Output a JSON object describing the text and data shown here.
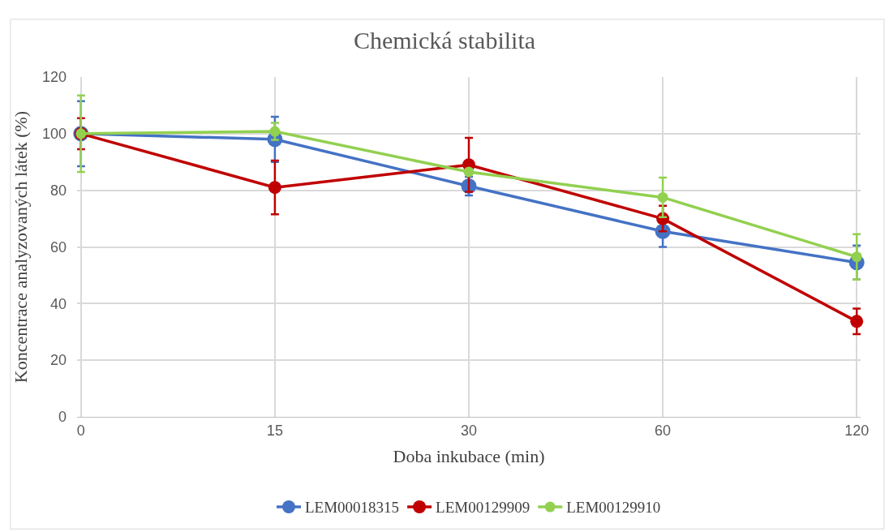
{
  "chart_data": {
    "type": "line",
    "title": "Chemická stabilita",
    "xlabel": "Doba inkubace (min)",
    "ylabel": "Koncentrace analyzovaných látek (%)",
    "categories": [
      "0",
      "15",
      "30",
      "60",
      "120"
    ],
    "series": [
      {
        "name": "LEM00018315",
        "color": "#4472c4",
        "values": [
          100,
          98,
          81.5,
          65.5,
          54.5
        ],
        "errors": [
          11.5,
          8,
          3.3,
          5.5,
          6
        ]
      },
      {
        "name": "LEM00129909",
        "color": "#c00000",
        "values": [
          100,
          81,
          89,
          70,
          33.7
        ],
        "errors": [
          5.5,
          9.5,
          9.5,
          4.5,
          4.5
        ]
      },
      {
        "name": "LEM00129910",
        "color": "#92d050",
        "values": [
          100,
          100.8,
          86.5,
          77.5,
          56.5
        ],
        "errors": [
          13.5,
          3,
          null,
          7,
          8
        ]
      }
    ],
    "ylim": [
      0,
      120
    ],
    "yticks": [
      0,
      20,
      40,
      60,
      80,
      100,
      120
    ],
    "grid": true,
    "legend": "bottom",
    "marker": "circle",
    "line_style": "solid"
  }
}
